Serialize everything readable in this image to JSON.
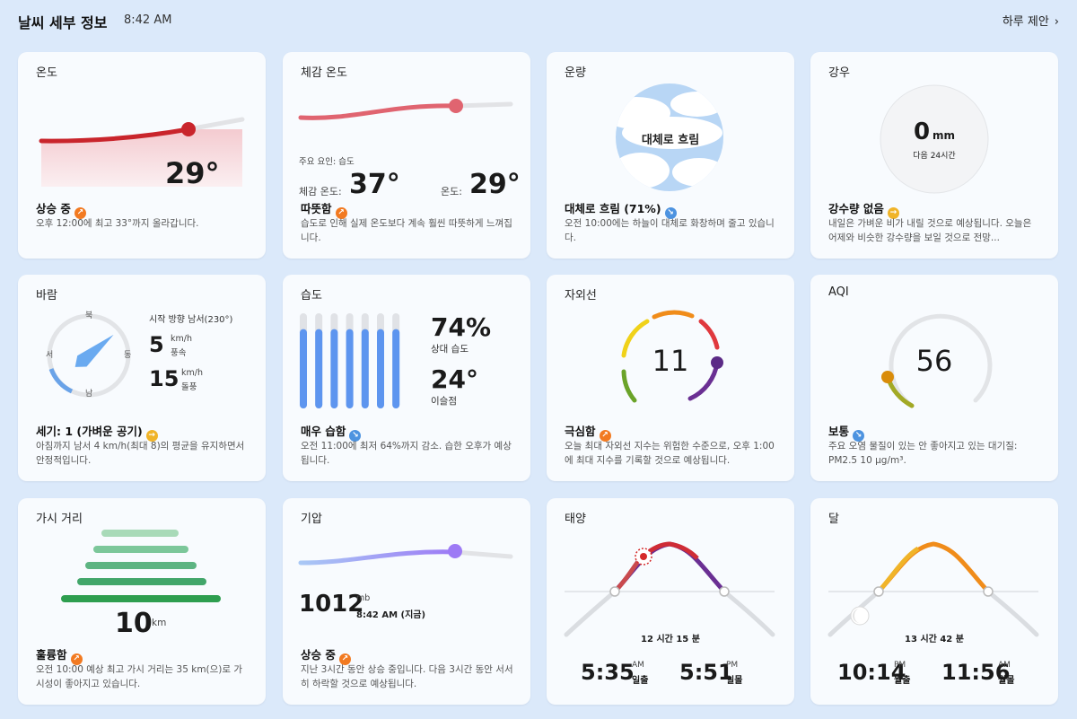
{
  "header": {
    "title": "날씨 세부 정보",
    "time": "8:42 AM",
    "suggest": "하루 제안",
    "suggest_icon": "chevron-right"
  },
  "cards": {
    "temperature": {
      "title": "온도",
      "value": "29°",
      "status": "상승 중",
      "status_icon": "trend-up",
      "desc": "오후 12:00에 최고 33°까지 올라갑니다."
    },
    "feels": {
      "title": "체감 온도",
      "factor": "주요 요인: 습도",
      "feels_label": "체감 온도:",
      "feels_value": "37°",
      "temp_label": "온도:",
      "temp_value": "29°",
      "status": "따뜻함",
      "status_icon": "trend-up",
      "desc": "습도로 인해 실제 온도보다 계속 훨씬 따뜻하게 느껴집니다."
    },
    "cloud": {
      "title": "운량",
      "center": "대체로 흐림",
      "status": "대체로 흐림 (71%)",
      "status_icon": "trend-down",
      "cover_percent": 71,
      "desc": "오전 10:00에는 하늘이 대체로 화창하며 줄고 있습니다."
    },
    "rain": {
      "title": "강우",
      "value": "0",
      "unit": "mm",
      "sub": "다음 24시간",
      "status": "강수량 없음",
      "status_icon": "steady",
      "desc": "내일은 가벼운 비가 내릴 것으로 예상됩니다. 오늘은 어제와 비슷한 강수량을 보일 것으로 전망..."
    },
    "wind": {
      "title": "바람",
      "north": "북",
      "east": "동",
      "south": "남",
      "west": "서",
      "direction": "시작 방향 남서(230°)",
      "direction_degrees": 230,
      "speed": "5",
      "speed_unit": "km/h",
      "speed_label": "풍속",
      "gust": "15",
      "gust_unit": "km/h",
      "gust_label": "돌풍",
      "status": "세기: 1 (가벼운 공기)",
      "status_icon": "steady",
      "desc": "아침까지 남서 4 km/h(최대 8)의 평균을 유지하면서 안정적입니다."
    },
    "humidity": {
      "title": "습도",
      "humidity": "74%",
      "humidity_label": "상대 습도",
      "dew": "24°",
      "dew_label": "이슬점",
      "status": "매우 습함",
      "status_icon": "trend-down",
      "bar_levels": [
        0.82,
        0.82,
        0.82,
        0.82,
        0.82,
        0.82,
        0.82
      ],
      "desc": "오전 11:00에 최저 64%까지 감소. 습한 오후가 예상됩니다."
    },
    "uv": {
      "title": "자외선",
      "value": "11",
      "status": "극심함",
      "status_icon": "trend-up",
      "desc": "오늘 최대 자외선 지수는 위험한 수준으로, 오후 1:00에 최대 지수를 기록할 것으로 예상됩니다."
    },
    "aqi": {
      "title": "AQI",
      "value": "56",
      "status": "보통",
      "status_icon": "trend-down",
      "desc": "주요 오염 물질이 있는 안 좋아지고 있는 대기질: PM2.5 10 µg/m³."
    },
    "visibility": {
      "title": "가시 거리",
      "value": "10",
      "unit": "km",
      "status": "훌륭함",
      "status_icon": "trend-up",
      "desc": "오전 10:00 예상 최고 가시 거리는 35 km(으)로 가시성이 좋아지고 있습니다."
    },
    "pressure": {
      "title": "기압",
      "value": "1012",
      "unit": "mb",
      "time": "8:42 AM (지금)",
      "status": "상승 중",
      "status_icon": "trend-up",
      "desc": "지난 3시간 동안 상승 중입니다. 다음 3시간 동안 서서히 하락할 것으로 예상됩니다."
    },
    "sun": {
      "title": "태양",
      "duration": "12 시간 15 분",
      "rise": "5:35",
      "rise_ampm": "AM",
      "rise_label": "일출",
      "set": "5:51",
      "set_ampm": "PM",
      "set_label": "일몰"
    },
    "moon": {
      "title": "달",
      "duration": "13 시간 42 분",
      "rise": "10:14",
      "rise_ampm": "PM",
      "rise_label": "월출",
      "set": "11:56",
      "set_ampm": "AM",
      "set_label": "월몰"
    }
  },
  "colors": {
    "background": "#dbe9fa",
    "card": "#f8fbfe",
    "temp_red": "#c9252c",
    "feels_red": "#e06470",
    "aqi_yellow": "#d98c0a",
    "pressure_purple": "#9d7af5",
    "visibility_green": "#2e9e4f"
  }
}
